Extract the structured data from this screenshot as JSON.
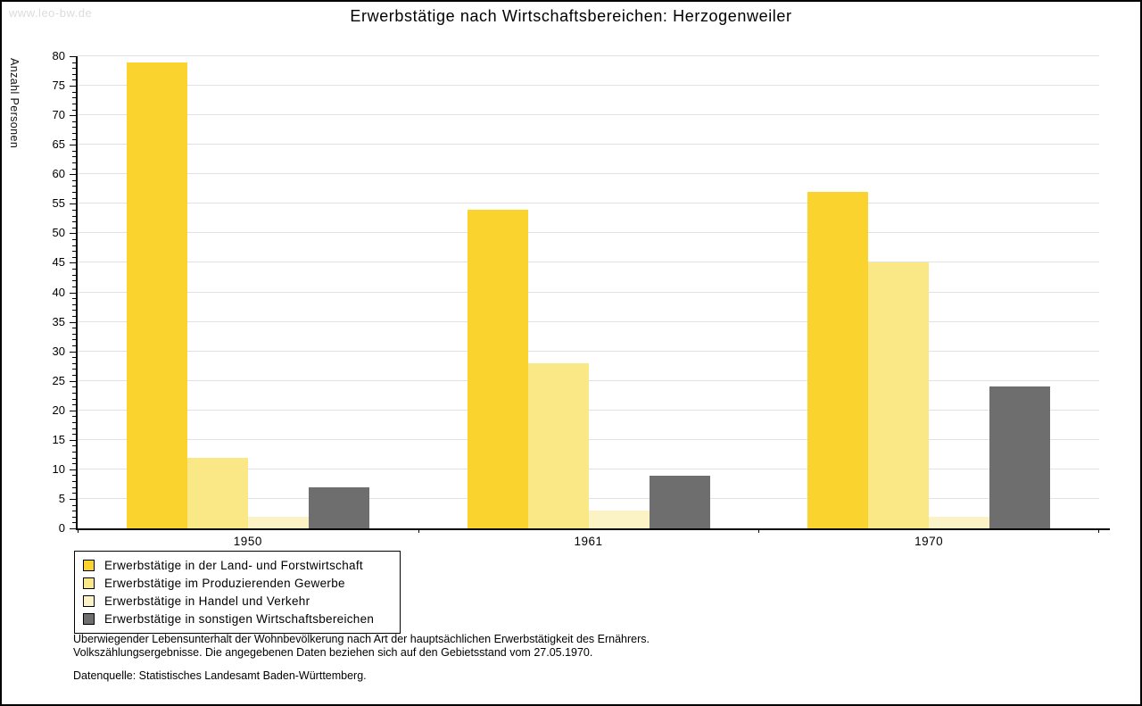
{
  "watermark": "www.leo-bw.de",
  "title": "Erwerbstätige nach Wirtschaftsbereichen: Herzogenweiler",
  "chart_data": {
    "type": "bar",
    "grouped": true,
    "title": "Erwerbstätige nach Wirtschaftsbereichen: Herzogenweiler",
    "categories": [
      "1950",
      "1961",
      "1970"
    ],
    "series": [
      {
        "name": "Erwerbstätige in der Land- und Forstwirtschaft",
        "color": "#FBD32F",
        "values": [
          79,
          54,
          57
        ]
      },
      {
        "name": "Erwerbstätige im Produzierenden Gewerbe",
        "color": "#FAE785",
        "values": [
          12,
          28,
          45
        ]
      },
      {
        "name": "Erwerbstätige in Handel und Verkehr",
        "color": "#FBF3C5",
        "values": [
          2,
          3,
          2
        ]
      },
      {
        "name": "Erwerbstätige in sonstigen Wirtschaftsbereichen",
        "color": "#6E6E6E",
        "values": [
          7,
          9,
          24
        ]
      }
    ],
    "xlabel": "",
    "ylabel": "Anzahl Personen",
    "ylim": [
      0,
      80
    ],
    "ytick_step": 5,
    "yminor_step": 1,
    "grid": true,
    "legend_position": "bottom-left"
  },
  "footnotes": {
    "line1": "Überwiegender Lebensunterhalt der Wohnbevölkerung nach Art der hauptsächlichen Erwerbstätigkeit des Ernährers.",
    "line2": "Volkszählungsergebnisse. Die angegebenen Daten beziehen sich auf den Gebietsstand vom 27.05.1970.",
    "source": "Datenquelle: Statistisches Landesamt Baden-Württemberg."
  }
}
